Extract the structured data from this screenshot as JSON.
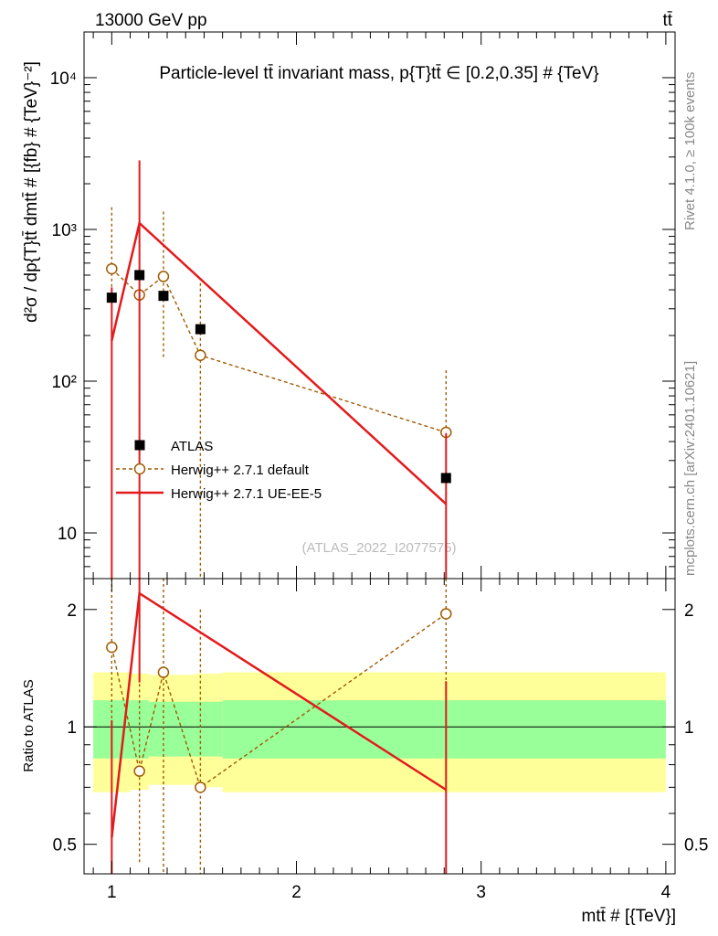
{
  "header": {
    "left": "13000 GeV pp",
    "right": "tt̄"
  },
  "side_labels": {
    "rivet": "Rivet 4.1.0, ≥ 100k events",
    "mcplots": "mcplots.cern.ch [arXiv:2401.10621]"
  },
  "colors": {
    "data": "#000000",
    "default": "#a05a00",
    "ueee5": "#e31a1c",
    "band_inner": "#99ff99",
    "band_outer": "#ffff99"
  },
  "chart_data": [
    {
      "type": "scatter",
      "title": "Particle-level tt̄ invariant mass, p{T}tt̄ ∈ [0.2,0.35] # {TeV}",
      "watermark": "(ATLAS_2022_I2077575)",
      "ylabel": "d²σ / dp{T}tt̄ dmtt̄ # [{fb} # {TeV}⁻²]",
      "yscale": "log",
      "ylim": [
        5,
        20000
      ],
      "xlim": [
        0.85,
        4.05
      ],
      "yticks": [
        {
          "value": 10,
          "label": "10"
        },
        {
          "value": 100,
          "label": "10²"
        },
        {
          "value": 1000,
          "label": "10³"
        },
        {
          "value": 10000,
          "label": "10⁴"
        }
      ],
      "legend": [
        {
          "key": "data",
          "label": "ATLAS"
        },
        {
          "key": "default",
          "label": "Herwig++ 2.7.1 default"
        },
        {
          "key": "ueee5",
          "label": "Herwig++ 2.7.1 UE-EE-5"
        }
      ],
      "legend_position": "center-left",
      "series": [
        {
          "key": "data",
          "name": "ATLAS",
          "x": [
            1.0,
            1.15,
            1.28,
            1.48,
            2.81
          ],
          "y": [
            355,
            500,
            365,
            220,
            23
          ],
          "xerr": [
            0.025,
            0.025,
            0.025,
            0.025,
            0.025
          ]
        },
        {
          "key": "default",
          "name": "Herwig++ 2.7.1 default",
          "x": [
            1.0,
            1.15,
            1.28,
            1.48,
            2.81
          ],
          "y": [
            550,
            370,
            490,
            148,
            46
          ],
          "yerr_lo": [
            330,
            370,
            350,
            148,
            46
          ],
          "yerr_hi": [
            850,
            370,
            820,
            295,
            72
          ]
        },
        {
          "key": "ueee5",
          "name": "Herwig++ 2.7.1 UE-EE-5",
          "x": [
            1.0,
            1.15,
            2.81
          ],
          "y": [
            185,
            1100,
            15.5
          ],
          "yerr_lo": [
            230,
            1750,
            30
          ],
          "yerr_hi": [
            230,
            1750,
            30
          ]
        }
      ]
    },
    {
      "type": "scatter",
      "title": "",
      "xlabel": "mtt̄ # [{TeV}]",
      "ylabel": "Ratio to ATLAS",
      "yscale": "log",
      "ylim": [
        0.42,
        2.4
      ],
      "xlim": [
        0.85,
        4.05
      ],
      "xticks": [
        {
          "value": 1,
          "label": "1"
        },
        {
          "value": 2,
          "label": "2"
        },
        {
          "value": 3,
          "label": "3"
        },
        {
          "value": 4,
          "label": "4"
        }
      ],
      "yticks": [
        {
          "value": 0.5,
          "label": "0.5"
        },
        {
          "value": 1,
          "label": "1"
        },
        {
          "value": 2,
          "label": "2"
        }
      ],
      "bands": [
        {
          "x0": 0.9,
          "x1": 1.1,
          "inner_lo": 0.83,
          "inner_hi": 1.17,
          "outer_lo": 0.68,
          "outer_hi": 1.38
        },
        {
          "x0": 1.1,
          "x1": 1.2,
          "inner_lo": 0.83,
          "inner_hi": 1.17,
          "outer_lo": 0.69,
          "outer_hi": 1.37
        },
        {
          "x0": 1.2,
          "x1": 1.45,
          "inner_lo": 0.84,
          "inner_hi": 1.16,
          "outer_lo": 0.71,
          "outer_hi": 1.36
        },
        {
          "x0": 1.45,
          "x1": 1.6,
          "inner_lo": 0.84,
          "inner_hi": 1.16,
          "outer_lo": 0.7,
          "outer_hi": 1.37
        },
        {
          "x0": 1.6,
          "x1": 4.0,
          "inner_lo": 0.83,
          "inner_hi": 1.17,
          "outer_lo": 0.68,
          "outer_hi": 1.38
        }
      ],
      "series": [
        {
          "key": "default",
          "name": "Herwig++ 2.7.1 default",
          "x": [
            1.0,
            1.15,
            1.28,
            1.48,
            2.81
          ],
          "y": [
            1.6,
            0.77,
            1.38,
            0.7,
            1.95
          ],
          "yerr_lo": [
            2.0,
            0.32,
            1.2,
            0.7,
            0.75
          ],
          "yerr_hi": [
            2.5,
            0.9,
            2.3,
            1.3,
            2.5
          ]
        },
        {
          "key": "ueee5",
          "name": "Herwig++ 2.7.1 UE-EE-5",
          "x": [
            1.0,
            1.15,
            2.81
          ],
          "y": [
            0.52,
            2.2,
            0.69
          ],
          "yerr_lo": [
            0.52,
            0.9,
            0.69
          ],
          "yerr_hi": [
            0.52,
            2.6,
            0.62
          ]
        }
      ]
    }
  ]
}
